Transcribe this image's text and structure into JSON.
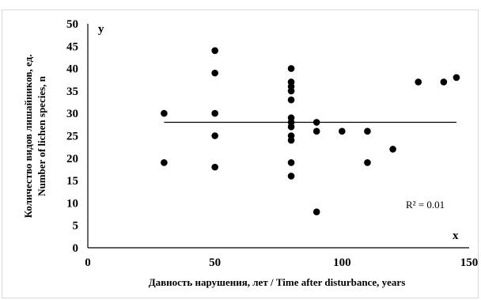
{
  "chart_data": {
    "type": "scatter",
    "xlabel": "Давность нарушения, лет / Time after disturbance, years",
    "ylabel": [
      "Количество видов лишайников, ед.",
      "Number of lichen species, n"
    ],
    "x_axis_letter": "x",
    "y_axis_letter": "y",
    "xlim": [
      0,
      150
    ],
    "ylim": [
      0,
      50
    ],
    "xticks": [
      0,
      50,
      100,
      150
    ],
    "yticks": [
      0,
      5,
      10,
      15,
      20,
      25,
      30,
      35,
      40,
      45,
      50
    ],
    "grid": false,
    "points": [
      {
        "x": 30,
        "y": 30
      },
      {
        "x": 30,
        "y": 19
      },
      {
        "x": 50,
        "y": 44
      },
      {
        "x": 50,
        "y": 39
      },
      {
        "x": 50,
        "y": 30
      },
      {
        "x": 50,
        "y": 25
      },
      {
        "x": 50,
        "y": 18
      },
      {
        "x": 80,
        "y": 40
      },
      {
        "x": 80,
        "y": 37
      },
      {
        "x": 80,
        "y": 36
      },
      {
        "x": 80,
        "y": 35
      },
      {
        "x": 80,
        "y": 33
      },
      {
        "x": 80,
        "y": 29
      },
      {
        "x": 80,
        "y": 28
      },
      {
        "x": 80,
        "y": 27
      },
      {
        "x": 80,
        "y": 25
      },
      {
        "x": 80,
        "y": 24
      },
      {
        "x": 80,
        "y": 19
      },
      {
        "x": 80,
        "y": 16
      },
      {
        "x": 90,
        "y": 28
      },
      {
        "x": 90,
        "y": 26
      },
      {
        "x": 90,
        "y": 8
      },
      {
        "x": 100,
        "y": 26
      },
      {
        "x": 110,
        "y": 26
      },
      {
        "x": 110,
        "y": 19
      },
      {
        "x": 120,
        "y": 22
      },
      {
        "x": 130,
        "y": 37
      },
      {
        "x": 140,
        "y": 37
      },
      {
        "x": 145,
        "y": 38
      }
    ],
    "trendline": {
      "x": [
        30,
        145
      ],
      "y": [
        28,
        28
      ]
    },
    "annotation": "R² = 0.01",
    "marker_color": "#000000",
    "line_color": "#000000"
  }
}
